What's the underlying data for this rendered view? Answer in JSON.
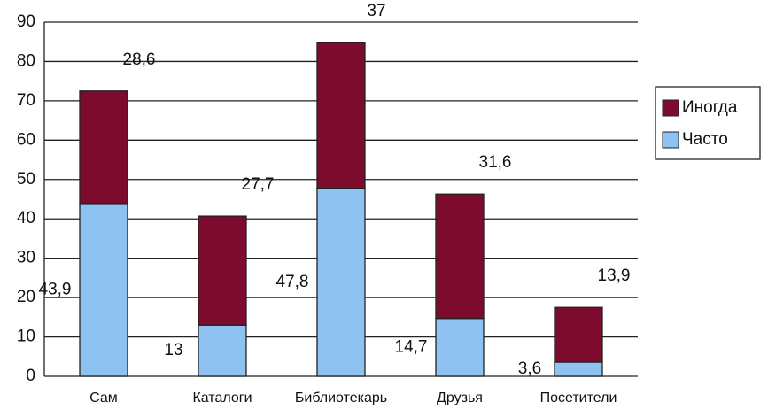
{
  "chart_data": {
    "type": "stacked_bar",
    "categories": [
      "Сам",
      "Каталоги",
      "Библиотекарь",
      "Друзья",
      "Посетители"
    ],
    "series": [
      {
        "name": "Часто",
        "color": "#8ec2f0",
        "values": [
          43.9,
          13,
          47.8,
          14.7,
          3.6
        ],
        "value_labels": [
          "43,9",
          "13",
          "47,8",
          "14,7",
          "3,6"
        ]
      },
      {
        "name": "Иногда",
        "color": "#7d0b2e",
        "values": [
          28.6,
          27.7,
          37,
          31.6,
          13.9
        ],
        "value_labels": [
          "28,6",
          "27,7",
          "37",
          "31,6",
          "13,9"
        ]
      }
    ],
    "ylim": [
      0,
      90
    ],
    "yticks": [
      0,
      10,
      20,
      30,
      40,
      50,
      60,
      70,
      80,
      90
    ],
    "grid": true,
    "legend": "right"
  }
}
